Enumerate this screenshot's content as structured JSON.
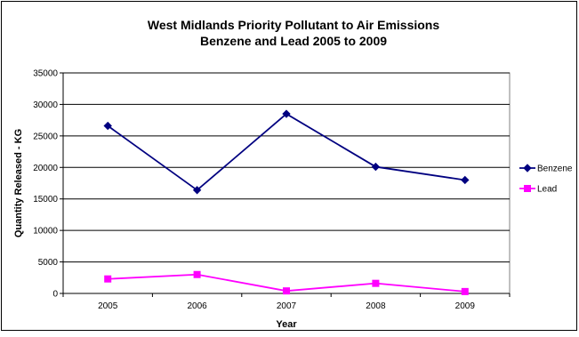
{
  "chart_data": {
    "type": "line",
    "title": "West Midlands Priority Pollutant to Air Emissions",
    "subtitle": "Benzene and Lead 2005 to 2009",
    "xlabel": "Year",
    "ylabel": "Quantity Released - KG",
    "categories": [
      "2005",
      "2006",
      "2007",
      "2008",
      "2009"
    ],
    "ylim": [
      0,
      35000
    ],
    "yticks": [
      0,
      5000,
      10000,
      15000,
      20000,
      25000,
      30000,
      35000
    ],
    "grid": "horizontal",
    "legend_position": "right",
    "series": [
      {
        "name": "Benzene",
        "values": [
          26600,
          16400,
          28500,
          20100,
          18000
        ],
        "color": "#000080",
        "marker": "diamond"
      },
      {
        "name": "Lead",
        "values": [
          2300,
          3000,
          400,
          1600,
          300
        ],
        "color": "#ff00ff",
        "marker": "square"
      }
    ]
  }
}
